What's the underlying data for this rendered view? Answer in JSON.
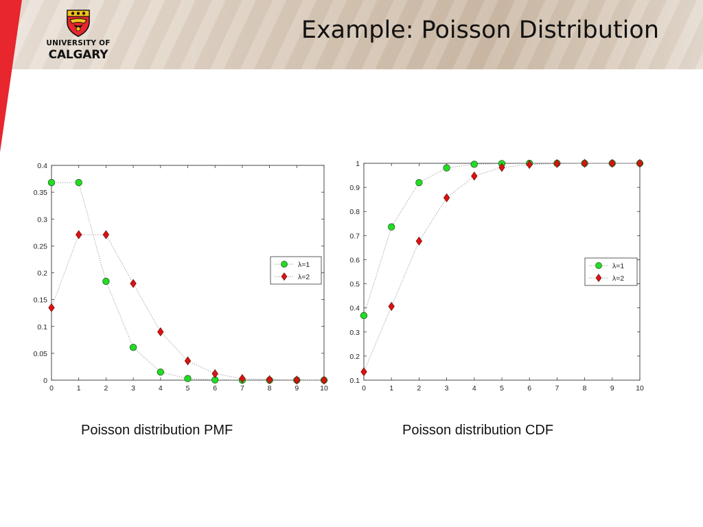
{
  "page": {
    "title": "Example: Poisson Distribution",
    "logo": {
      "line1": "UNIVERSITY OF",
      "line2": "CALGARY"
    },
    "colors": {
      "accent_red": "#e8262d",
      "series1": "#22dd22",
      "series2": "#dd1111"
    }
  },
  "captions": {
    "pmf": "Poisson distribution PMF",
    "cdf": "Poisson distribution CDF"
  },
  "chart_data": [
    {
      "type": "line",
      "x": [
        0,
        1,
        2,
        3,
        4,
        5,
        6,
        7,
        8,
        9,
        10
      ],
      "series": [
        {
          "name": "λ=1",
          "marker": "circle",
          "color": "#22dd22",
          "values": [
            0.368,
            0.368,
            0.184,
            0.061,
            0.015,
            0.003,
            0.0005,
            0.0001,
            0.0,
            0.0,
            0.0
          ]
        },
        {
          "name": "λ=2",
          "marker": "diamond",
          "color": "#dd1111",
          "values": [
            0.135,
            0.271,
            0.271,
            0.18,
            0.09,
            0.036,
            0.012,
            0.003,
            0.001,
            0.0002,
            0.0
          ]
        }
      ],
      "xlim": [
        0,
        10
      ],
      "ylim": [
        0,
        0.4
      ],
      "xticks": [
        "0",
        "1",
        "2",
        "3",
        "4",
        "5",
        "6",
        "7",
        "8",
        "9",
        "10"
      ],
      "yticks": [
        "0",
        "0.05",
        "0.1",
        "0.15",
        "0.2",
        "0.25",
        "0.3",
        "0.35",
        "0.4"
      ],
      "title": "",
      "xlabel": "",
      "ylabel": "",
      "grid": false,
      "line_style": "dotted",
      "legend": "center-right"
    },
    {
      "type": "line",
      "x": [
        0,
        1,
        2,
        3,
        4,
        5,
        6,
        7,
        8,
        9,
        10
      ],
      "series": [
        {
          "name": "λ=1",
          "marker": "circle",
          "color": "#22dd22",
          "values": [
            0.368,
            0.736,
            0.92,
            0.981,
            0.996,
            0.999,
            1.0,
            1.0,
            1.0,
            1.0,
            1.0
          ]
        },
        {
          "name": "λ=2",
          "marker": "diamond",
          "color": "#dd1111",
          "values": [
            0.135,
            0.406,
            0.677,
            0.857,
            0.947,
            0.983,
            0.995,
            0.999,
            1.0,
            1.0,
            1.0
          ]
        }
      ],
      "xlim": [
        0,
        10
      ],
      "ylim": [
        0.1,
        1
      ],
      "xticks": [
        "0",
        "1",
        "2",
        "3",
        "4",
        "5",
        "6",
        "7",
        "8",
        "9",
        "10"
      ],
      "yticks": [
        "0.1",
        "0.2",
        "0.3",
        "0.4",
        "0.5",
        "0.6",
        "0.7",
        "0.8",
        "0.9",
        "1"
      ],
      "title": "",
      "xlabel": "",
      "ylabel": "",
      "grid": false,
      "line_style": "dotted",
      "legend": "center-right"
    }
  ]
}
